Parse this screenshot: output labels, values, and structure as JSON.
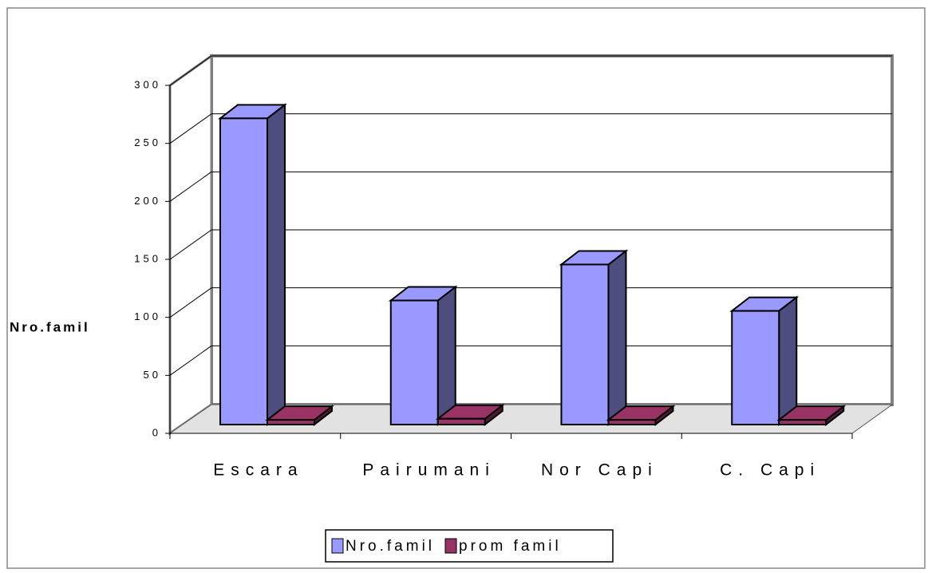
{
  "chart_data": {
    "type": "bar3d",
    "y_label": "Nro.famil",
    "categories": [
      "Escara",
      "Pairumani",
      "Nor Capi",
      "C. Capi"
    ],
    "series": [
      {
        "name": "Nro.famil",
        "color": "#9999ff",
        "values": [
          264,
          107,
          138,
          98
        ]
      },
      {
        "name": "prom famil",
        "color": "#993366",
        "values": [
          4,
          5,
          4,
          4
        ]
      }
    ],
    "ylim": [
      0,
      300
    ],
    "yticks": [
      0,
      50,
      100,
      150,
      200,
      250,
      300
    ],
    "grid": true,
    "legend": "bottom"
  }
}
